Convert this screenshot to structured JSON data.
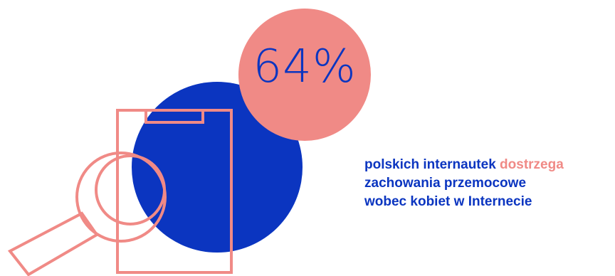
{
  "stat": {
    "value": "64%"
  },
  "caption": {
    "line1_part1": "polskich internautek ",
    "line1_highlight": "dostrzega",
    "line2": "zachowania przemocowe",
    "line3": "wobec kobiet w Internecie"
  },
  "colors": {
    "primary_blue": "#0b35c0",
    "accent_pink": "#f08a86"
  },
  "icons": {
    "illustration": "clipboard-magnifier-icon"
  }
}
